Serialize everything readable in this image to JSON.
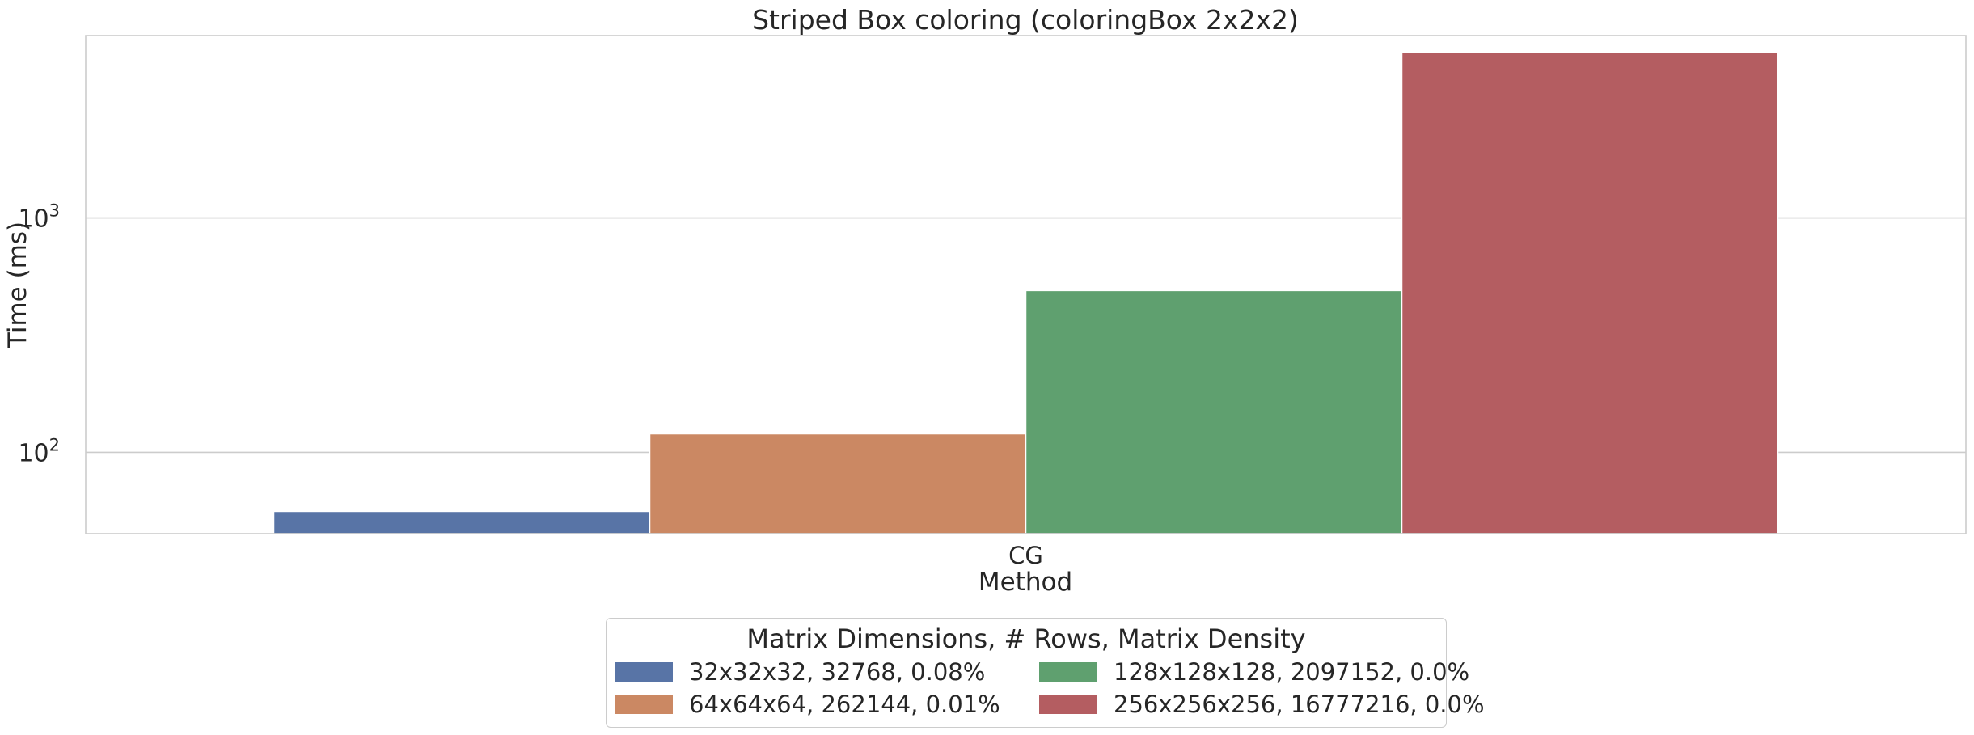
{
  "chart_data": {
    "type": "bar",
    "title": "Striped Box coloring (coloringBox 2x2x2)",
    "xlabel": "Method",
    "ylabel": "Time (ms)",
    "yscale": "log",
    "ylim": [
      45,
      6000
    ],
    "y_ticks": [
      100,
      1000
    ],
    "y_tick_labels": [
      {
        "base": "10",
        "exp": "2"
      },
      {
        "base": "10",
        "exp": "3"
      }
    ],
    "categories": [
      "CG"
    ],
    "grid": "horizontal",
    "legend_placement": "bottom-center",
    "legend_title": "Matrix Dimensions, # Rows, Matrix Density",
    "series": [
      {
        "name": "32x32x32, 32768, 0.08%",
        "values": [
          56
        ],
        "color": "#5874a6"
      },
      {
        "name": "64x64x64, 262144, 0.01%",
        "values": [
          120
        ],
        "color": "#cb8863"
      },
      {
        "name": "128x128x128, 2097152, 0.0%",
        "values": [
          490
        ],
        "color": "#5fa06f"
      },
      {
        "name": "256x256x256, 16777216, 0.0%",
        "values": [
          5100
        ],
        "color": "#b45d61"
      }
    ]
  }
}
